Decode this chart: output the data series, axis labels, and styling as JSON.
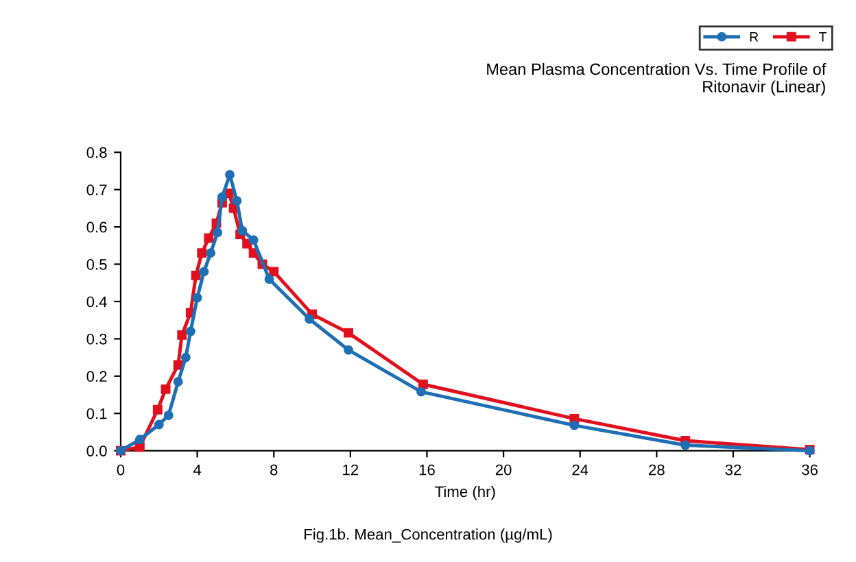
{
  "chart_data": {
    "type": "line",
    "title": "Mean Plasma Concentration Vs. Time Profile of\nRitonavir (Linear)",
    "xlabel": "Time (hr)",
    "annotations": [
      "Fig.1b. Mean_Concentration (µg/mL)"
    ],
    "xlim": [
      0,
      36
    ],
    "xticks": [
      0,
      4,
      8,
      12,
      16,
      20,
      24,
      28,
      32,
      36
    ],
    "ylim": [
      0,
      0.8
    ],
    "yticks": [
      {
        "value": 0,
        "label": "0.0"
      },
      0.1,
      0.2,
      0.3,
      0.4,
      0.5,
      0.6,
      0.7,
      0.8
    ],
    "grid": false,
    "legend": "top right",
    "line_style": "solid",
    "series": [
      {
        "name": "R",
        "color": "#1f6fb4",
        "marker": "circle",
        "x": [
          0,
          1,
          2,
          2.5,
          3,
          3.4,
          3.65,
          4,
          4.35,
          4.7,
          5.06,
          5.3,
          5.7,
          6.07,
          6.35,
          6.94,
          7.76,
          9.86,
          11.9,
          15.7,
          23.7,
          29.5,
          36
        ],
        "values": [
          0,
          0.03,
          0.07,
          0.095,
          0.185,
          0.25,
          0.32,
          0.41,
          0.48,
          0.53,
          0.585,
          0.68,
          0.74,
          0.67,
          0.59,
          0.565,
          0.46,
          0.353,
          0.27,
          0.158,
          0.068,
          0.015,
          0.0
        ]
      },
      {
        "name": "T",
        "color": "#e0101e",
        "marker": "square",
        "x": [
          0,
          1,
          1.93,
          2.35,
          3,
          3.2,
          3.65,
          3.93,
          4.24,
          4.6,
          5,
          5.3,
          5.65,
          5.9,
          6.24,
          6.6,
          6.94,
          7.4,
          8,
          10,
          11.9,
          15.8,
          23.7,
          29.5,
          36
        ],
        "values": [
          0,
          0.01,
          0.11,
          0.165,
          0.23,
          0.31,
          0.37,
          0.47,
          0.53,
          0.57,
          0.61,
          0.665,
          0.69,
          0.65,
          0.58,
          0.555,
          0.53,
          0.5,
          0.48,
          0.366,
          0.316,
          0.178,
          0.086,
          0.027,
          0.003
        ]
      }
    ]
  }
}
